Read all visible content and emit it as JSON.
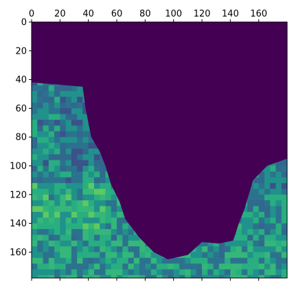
{
  "chart_data": {
    "type": "heatmap",
    "title": "",
    "xlabel": "",
    "ylabel": "",
    "colormap": "viridis",
    "colors": {
      "background": "#440154",
      "mid": "#3b528b",
      "teal": "#21918c",
      "green": "#5ec962",
      "yellow": "#fde725",
      "axis": "#000000"
    },
    "x_axis_position": "top",
    "xlim": [
      0,
      180
    ],
    "ylim": [
      178,
      0
    ],
    "xticks": [
      0,
      20,
      40,
      60,
      80,
      100,
      120,
      140,
      160
    ],
    "xtick_labels": [
      "0",
      "20",
      "40",
      "60",
      "80",
      "100",
      "120",
      "140",
      "160"
    ],
    "yticks": [
      0,
      20,
      40,
      60,
      80,
      100,
      120,
      140,
      160
    ],
    "ytick_labels": [
      "0",
      "20",
      "40",
      "60",
      "80",
      "100",
      "120",
      "140",
      "160"
    ],
    "grid": false,
    "legend": "none",
    "dark_region_boundary": {
      "left_edge": [
        [
          0,
          42
        ],
        [
          36,
          45
        ],
        [
          38,
          60
        ],
        [
          42,
          80
        ],
        [
          48,
          90
        ],
        [
          52,
          100
        ],
        [
          56,
          113
        ],
        [
          62,
          125
        ],
        [
          66,
          137
        ],
        [
          76,
          150
        ],
        [
          86,
          160
        ],
        [
          96,
          165
        ],
        [
          110,
          162
        ],
        [
          120,
          153
        ],
        [
          132,
          154
        ],
        [
          142,
          152
        ],
        [
          146,
          140
        ],
        [
          150,
          130
        ],
        [
          156,
          110
        ],
        [
          166,
          100
        ],
        [
          180,
          95
        ]
      ],
      "right_edge_top_x": 180
    },
    "textured_region_description_values": {
      "left_low_band_rows": [
        42,
        100
      ],
      "bright_region_rows": [
        110,
        140
      ],
      "bottom_band_rows": [
        150,
        178
      ]
    }
  }
}
